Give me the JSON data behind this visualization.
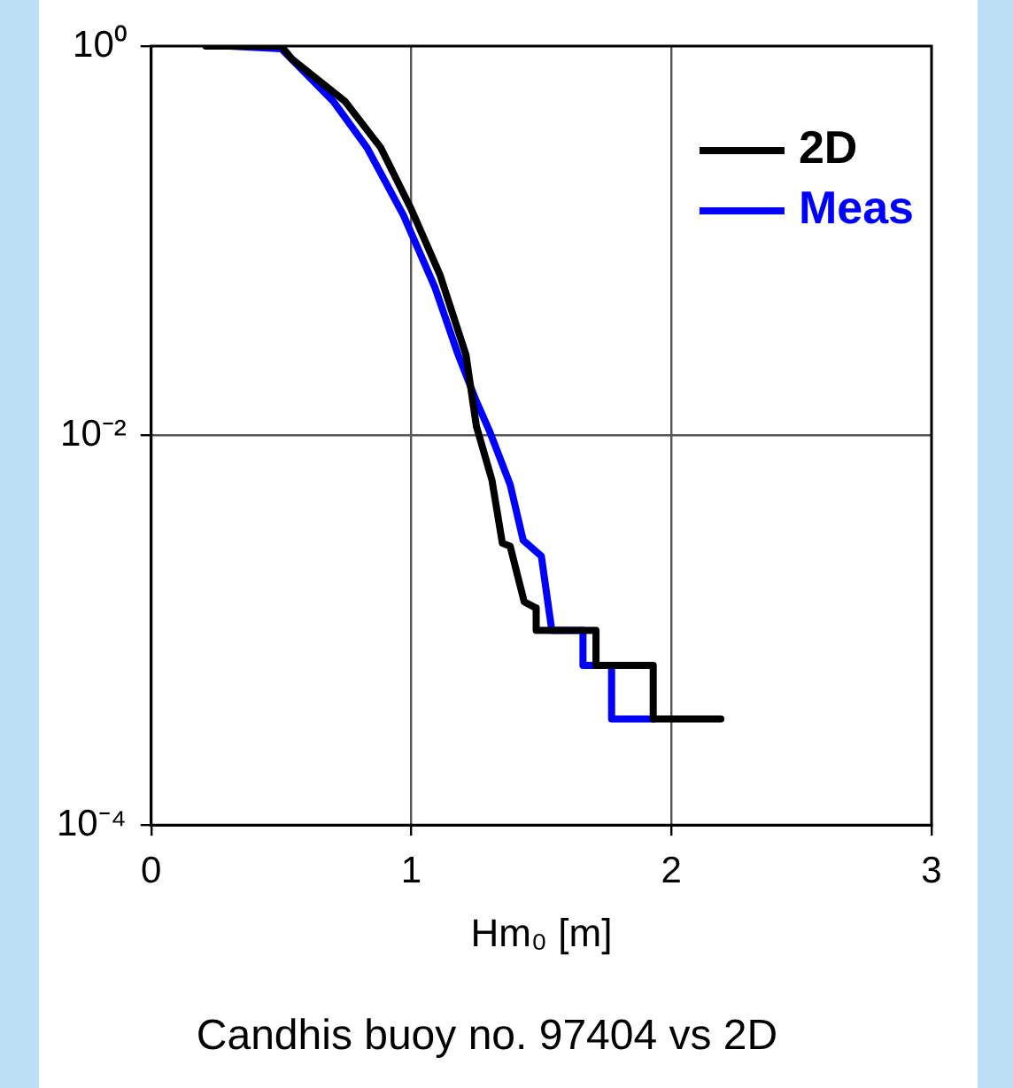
{
  "chart_data": {
    "type": "line",
    "title": "Candhis buoy no. 97404 vs 2D",
    "xlabel": "Hm₀ [m]",
    "xlim": [
      0,
      3
    ],
    "xticks": [
      0,
      1,
      2,
      3
    ],
    "ylim": [
      0.0001,
      1
    ],
    "yticks": [
      {
        "value": 1,
        "label": "10⁰"
      },
      {
        "value": 0.01,
        "label": "10⁻²"
      },
      {
        "value": 0.0001,
        "label": "10⁻⁴"
      }
    ],
    "log": "y",
    "grid": true,
    "legend": "top right",
    "marker": "none",
    "line_style": "solid",
    "series": [
      {
        "name": "2D",
        "color": "#000000",
        "x": [
          0.21,
          0.5,
          0.54,
          0.745,
          0.883,
          1.0,
          1.11,
          1.21,
          1.25,
          1.31,
          1.35,
          1.38,
          1.434,
          1.48,
          1.48,
          1.71,
          1.71,
          1.93,
          1.93,
          2.19
        ],
        "values": [
          1,
          1,
          0.86,
          0.52,
          0.3,
          0.145,
          0.067,
          0.026,
          0.0112,
          0.0059,
          0.0028,
          0.0027,
          0.0014,
          0.0013,
          0.001,
          0.001,
          0.00066,
          0.00066,
          0.00035,
          0.00035
        ]
      },
      {
        "name": "Meas",
        "color": "#0000ff",
        "x": [
          0.3,
          0.5,
          0.7,
          0.83,
          0.97,
          1.09,
          1.18,
          1.25,
          1.3,
          1.38,
          1.43,
          1.5,
          1.54,
          1.66,
          1.66,
          1.77,
          1.77,
          1.93
        ],
        "values": [
          1,
          0.97,
          0.52,
          0.3,
          0.135,
          0.058,
          0.026,
          0.015,
          0.0106,
          0.0056,
          0.0029,
          0.0024,
          0.001,
          0.001,
          0.00066,
          0.00066,
          0.00035,
          0.00035
        ]
      }
    ]
  }
}
